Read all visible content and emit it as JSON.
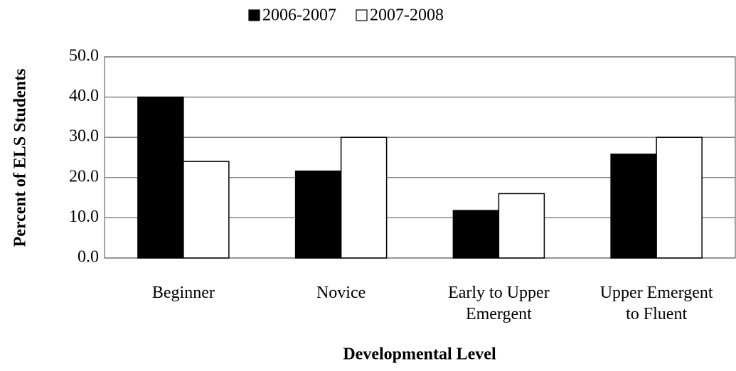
{
  "chart_data": {
    "type": "bar",
    "categories": [
      "Beginner",
      "Novice",
      "Early to Upper Emergent",
      "Upper Emergent to Fluent"
    ],
    "series": [
      {
        "name": "2006-2007",
        "color": "#000000",
        "values": [
          40.0,
          21.6,
          11.8,
          25.8
        ]
      },
      {
        "name": "2007-2008",
        "color": "#ffffff",
        "values": [
          24.0,
          30.0,
          16.0,
          30.0
        ]
      }
    ],
    "xlabel": "Developmental Level",
    "ylabel": "Percent of ELS Students",
    "ylim": [
      0,
      50
    ],
    "yticks": [
      {
        "value": 0,
        "label": "0.0"
      },
      {
        "value": 10,
        "label": "10.0"
      },
      {
        "value": 20,
        "label": "20.0"
      },
      {
        "value": 30,
        "label": "30.0"
      },
      {
        "value": 40,
        "label": "40.0"
      },
      {
        "value": 50,
        "label": "50.0"
      }
    ],
    "grid": true,
    "legend": "top"
  }
}
